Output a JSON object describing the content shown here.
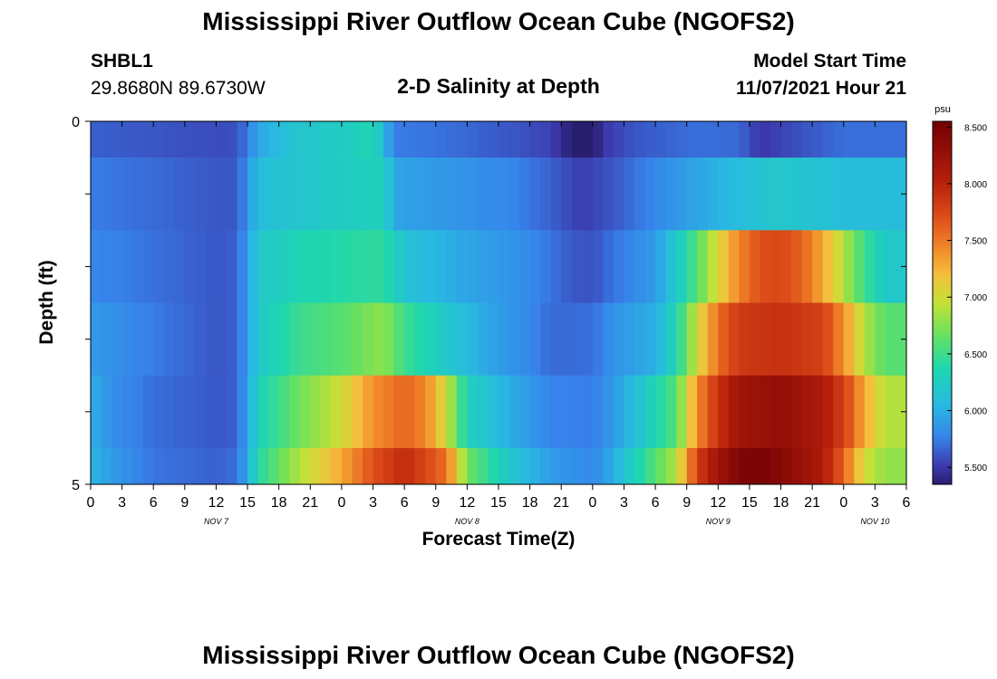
{
  "page_titles": [
    "Mississippi River Outflow Ocean Cube (NGOFS2)",
    "Mississippi River Outflow Ocean Cube (NGOFS2)"
  ],
  "station": {
    "id": "SHBL1",
    "coords": "29.8680N  89.6730W"
  },
  "model_start": {
    "label": "Model Start Time",
    "value": "11/07/2021 Hour 21"
  },
  "chart_data": {
    "type": "heatmap",
    "title": "2-D Salinity at Depth",
    "xlabel": "Forecast Time(Z)",
    "ylabel": "Depth (ft)",
    "units": "psu",
    "x_tick_labels": [
      "0",
      "3",
      "6",
      "9",
      "12",
      "15",
      "18",
      "21",
      "0",
      "3",
      "6",
      "9",
      "12",
      "15",
      "18",
      "21",
      "0",
      "3",
      "6",
      "9",
      "12",
      "15",
      "18",
      "21",
      "0",
      "3",
      "6"
    ],
    "date_labels": [
      {
        "text": "NOV 7",
        "at_hour": 12
      },
      {
        "text": "NOV 8",
        "at_hour": 36
      },
      {
        "text": "NOV 9",
        "at_hour": 60
      },
      {
        "text": "NOV 10",
        "at_hour": 75
      }
    ],
    "x_range_hours": [
      0,
      78
    ],
    "y_tick_labels": [
      "0",
      "5"
    ],
    "y_range_ft": [
      0,
      5
    ],
    "colorbar_ticks": [
      "8.500",
      "8.000",
      "7.500",
      "7.000",
      "6.500",
      "6.000",
      "5.500"
    ],
    "colorbar_range": [
      5.35,
      8.55
    ],
    "rows": [
      {
        "depth_ft": [
          0.0,
          0.5
        ],
        "knots": [
          [
            0,
            5.65
          ],
          [
            12,
            5.58
          ],
          [
            14,
            5.6
          ],
          [
            15,
            5.75
          ],
          [
            16,
            5.95
          ],
          [
            19,
            6.15
          ],
          [
            24,
            6.25
          ],
          [
            27,
            6.35
          ],
          [
            28,
            6.1
          ],
          [
            29,
            5.75
          ],
          [
            34,
            5.7
          ],
          [
            40,
            5.62
          ],
          [
            44,
            5.55
          ],
          [
            46,
            5.35
          ],
          [
            48,
            5.32
          ],
          [
            49,
            5.5
          ],
          [
            52,
            5.62
          ],
          [
            58,
            5.7
          ],
          [
            62,
            5.68
          ],
          [
            64,
            5.5
          ],
          [
            68,
            5.6
          ],
          [
            72,
            5.7
          ],
          [
            78,
            5.7
          ]
        ]
      },
      {
        "depth_ft": [
          0.5,
          1.5
        ],
        "knots": [
          [
            0,
            5.75
          ],
          [
            12,
            5.62
          ],
          [
            14,
            5.62
          ],
          [
            15,
            5.85
          ],
          [
            16,
            6.1
          ],
          [
            24,
            6.25
          ],
          [
            28,
            6.3
          ],
          [
            29,
            5.95
          ],
          [
            32,
            5.9
          ],
          [
            40,
            5.8
          ],
          [
            44,
            5.65
          ],
          [
            47,
            5.52
          ],
          [
            50,
            5.62
          ],
          [
            54,
            5.8
          ],
          [
            58,
            5.95
          ],
          [
            62,
            6.1
          ],
          [
            66,
            6.2
          ],
          [
            72,
            6.1
          ],
          [
            78,
            6.1
          ]
        ]
      },
      {
        "depth_ft": [
          1.5,
          2.5
        ],
        "knots": [
          [
            0,
            5.8
          ],
          [
            12,
            5.62
          ],
          [
            14,
            5.65
          ],
          [
            15,
            5.9
          ],
          [
            16,
            6.2
          ],
          [
            20,
            6.35
          ],
          [
            24,
            6.4
          ],
          [
            28,
            6.45
          ],
          [
            30,
            6.15
          ],
          [
            36,
            5.95
          ],
          [
            42,
            5.82
          ],
          [
            46,
            5.62
          ],
          [
            48,
            5.6
          ],
          [
            50,
            5.72
          ],
          [
            54,
            5.9
          ],
          [
            56,
            6.2
          ],
          [
            58,
            6.6
          ],
          [
            60,
            7.05
          ],
          [
            62,
            7.45
          ],
          [
            64,
            7.7
          ],
          [
            66,
            7.75
          ],
          [
            68,
            7.6
          ],
          [
            70,
            7.3
          ],
          [
            72,
            6.9
          ],
          [
            74,
            6.5
          ],
          [
            76,
            6.2
          ],
          [
            78,
            6.2
          ]
        ]
      },
      {
        "depth_ft": [
          2.5,
          3.5
        ],
        "knots": [
          [
            0,
            5.9
          ],
          [
            8,
            5.7
          ],
          [
            12,
            5.62
          ],
          [
            14,
            5.65
          ],
          [
            15,
            5.9
          ],
          [
            16,
            6.2
          ],
          [
            20,
            6.5
          ],
          [
            24,
            6.6
          ],
          [
            28,
            6.8
          ],
          [
            30,
            6.5
          ],
          [
            34,
            6.2
          ],
          [
            38,
            5.95
          ],
          [
            42,
            5.8
          ],
          [
            44,
            5.68
          ],
          [
            48,
            5.7
          ],
          [
            50,
            5.85
          ],
          [
            54,
            6.0
          ],
          [
            56,
            6.35
          ],
          [
            58,
            7.0
          ],
          [
            60,
            7.55
          ],
          [
            62,
            7.85
          ],
          [
            66,
            7.9
          ],
          [
            70,
            7.8
          ],
          [
            72,
            7.4
          ],
          [
            74,
            6.9
          ],
          [
            76,
            6.6
          ],
          [
            78,
            6.6
          ]
        ]
      },
      {
        "depth_ft": [
          3.5,
          4.5
        ],
        "knots": [
          [
            0,
            6.0
          ],
          [
            2,
            5.85
          ],
          [
            6,
            5.7
          ],
          [
            12,
            5.62
          ],
          [
            14,
            5.65
          ],
          [
            15,
            5.95
          ],
          [
            16,
            6.3
          ],
          [
            20,
            6.7
          ],
          [
            24,
            7.0
          ],
          [
            27,
            7.4
          ],
          [
            30,
            7.6
          ],
          [
            32,
            7.45
          ],
          [
            34,
            7.0
          ],
          [
            36,
            6.3
          ],
          [
            40,
            6.0
          ],
          [
            44,
            5.78
          ],
          [
            48,
            5.75
          ],
          [
            50,
            5.9
          ],
          [
            52,
            6.1
          ],
          [
            56,
            6.6
          ],
          [
            58,
            7.4
          ],
          [
            60,
            7.9
          ],
          [
            62,
            8.2
          ],
          [
            66,
            8.3
          ],
          [
            70,
            8.1
          ],
          [
            72,
            7.8
          ],
          [
            74,
            7.3
          ],
          [
            76,
            6.9
          ],
          [
            78,
            6.9
          ]
        ]
      },
      {
        "depth_ft": [
          4.5,
          5.0
        ],
        "knots": [
          [
            0,
            6.05
          ],
          [
            2,
            5.9
          ],
          [
            6,
            5.72
          ],
          [
            12,
            5.65
          ],
          [
            14,
            5.7
          ],
          [
            15,
            6.0
          ],
          [
            16,
            6.4
          ],
          [
            20,
            6.9
          ],
          [
            24,
            7.3
          ],
          [
            27,
            7.7
          ],
          [
            30,
            7.95
          ],
          [
            34,
            7.55
          ],
          [
            36,
            6.7
          ],
          [
            40,
            6.2
          ],
          [
            44,
            5.9
          ],
          [
            48,
            5.8
          ],
          [
            50,
            6.0
          ],
          [
            52,
            6.3
          ],
          [
            56,
            6.9
          ],
          [
            58,
            7.8
          ],
          [
            60,
            8.2
          ],
          [
            62,
            8.45
          ],
          [
            64,
            8.5
          ],
          [
            66,
            8.4
          ],
          [
            70,
            8.1
          ],
          [
            72,
            7.6
          ],
          [
            74,
            7.0
          ],
          [
            76,
            6.8
          ],
          [
            78,
            6.8
          ]
        ]
      }
    ]
  }
}
